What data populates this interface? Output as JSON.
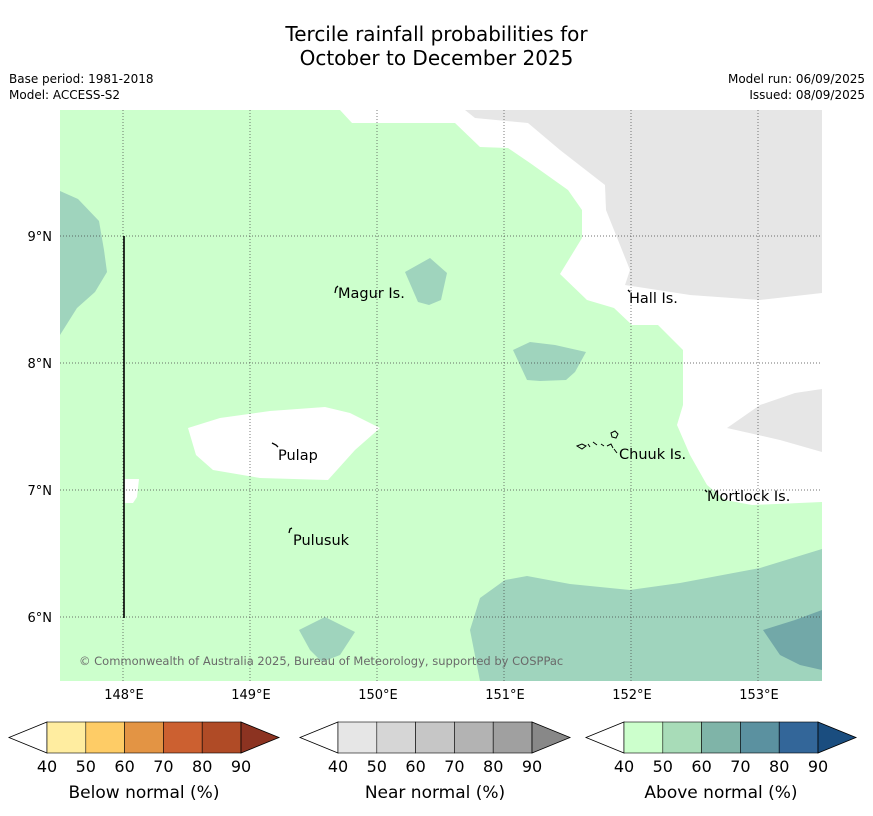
{
  "header": {
    "title_line1": "Tercile rainfall probabilities for",
    "title_line2": "October to December 2025",
    "base_period": "Base period: 1981-2018",
    "model": "Model: ACCESS-S2",
    "model_run": "Model run: 06/09/2025",
    "issued": "Issued: 08/09/2025"
  },
  "map": {
    "lon_ticks": [
      "148°E",
      "149°E",
      "150°E",
      "151°E",
      "152°E",
      "153°E"
    ],
    "lat_ticks": [
      "9°N",
      "8°N",
      "7°N",
      "6°N"
    ],
    "places": {
      "magur": "Magur Is.",
      "hall": "Hall Is.",
      "pulap": "Pulap",
      "chuuk": "Chuuk Is.",
      "mortlock": "Mortlock Is.",
      "pulusuk": "Pulusuk"
    },
    "copyright": "© Commonwealth of Australia 2025, Bureau of Meteorology, supported by COSPPac",
    "colors": {
      "above_50": "#ccffcc",
      "above_60": "#9fd4bd",
      "above_70": "#72a8a8",
      "near_50": "#e6e6e6",
      "white": "#ffffff"
    }
  },
  "legend": {
    "ticks": [
      "40",
      "50",
      "60",
      "70",
      "80",
      "90"
    ],
    "below": {
      "label": "Below normal (%)",
      "colors": [
        "#ffeda0",
        "#fecc66",
        "#e39444",
        "#cc6030",
        "#b04b26",
        "#8c3321"
      ]
    },
    "near": {
      "label": "Near normal (%)",
      "colors": [
        "#e6e6e6",
        "#d6d6d6",
        "#c6c6c6",
        "#b3b3b3",
        "#a0a0a0",
        "#888888"
      ]
    },
    "above": {
      "label": "Above normal (%)",
      "colors": [
        "#ccffcc",
        "#a8dcb8",
        "#7fb4a8",
        "#5b91a0",
        "#336699",
        "#1a4d7f"
      ]
    }
  }
}
